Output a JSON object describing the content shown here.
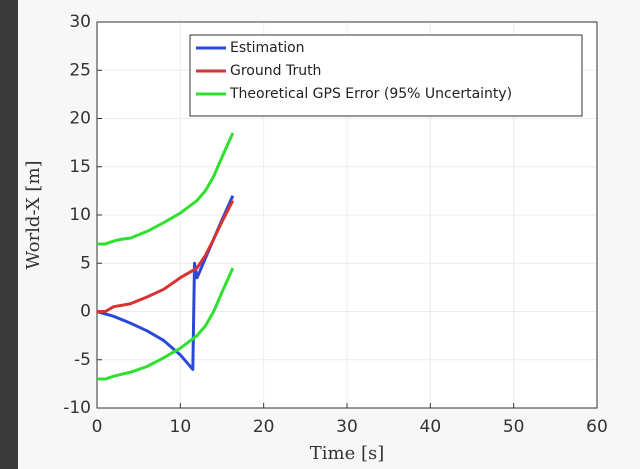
{
  "chart_data": {
    "type": "line",
    "xlabel": "Time [s]",
    "ylabel": "World-X [m]",
    "xlim": [
      0,
      60
    ],
    "xticks": [
      0,
      10,
      20,
      30,
      40,
      50,
      60
    ],
    "ylim": [
      -10,
      30
    ],
    "yticks": [
      -10,
      -5,
      0,
      5,
      10,
      15,
      20,
      25,
      30
    ],
    "grid": true,
    "legend": "top",
    "series": [
      {
        "name": "Estimation",
        "color": "#2a49d8",
        "x": [
          0,
          2,
          4,
          6,
          8,
          10,
          11.5,
          11.7,
          12,
          13,
          14,
          15,
          16.3
        ],
        "values": [
          0,
          -0.5,
          -1.2,
          -2,
          -3,
          -4.5,
          -6,
          5,
          3.5,
          5.5,
          7.5,
          9.5,
          12
        ]
      },
      {
        "name": "Ground Truth",
        "color": "#d93232",
        "x": [
          0,
          1,
          2,
          4,
          6,
          8,
          10,
          12,
          13,
          14,
          15,
          16.3
        ],
        "values": [
          0,
          0,
          0.5,
          0.8,
          1.5,
          2.3,
          3.5,
          4.5,
          5.8,
          7.5,
          9.3,
          11.5
        ]
      },
      {
        "name": "Theoretical GPS Error (95% Uncertainty)",
        "color": "#2fe02f",
        "x": [
          0,
          1,
          2,
          3,
          4,
          6,
          8,
          10,
          12,
          13,
          14,
          15,
          16.3
        ],
        "values": [
          7,
          7,
          7.3,
          7.5,
          7.6,
          8.3,
          9.2,
          10.2,
          11.5,
          12.5,
          14,
          16,
          18.5
        ]
      },
      {
        "name": null,
        "color": "#2fe02f",
        "x": [
          0,
          1,
          2,
          3,
          4,
          6,
          8,
          10,
          12,
          13,
          14,
          15,
          16.3
        ],
        "values": [
          -7,
          -7,
          -6.7,
          -6.5,
          -6.3,
          -5.7,
          -4.8,
          -3.8,
          -2.5,
          -1.5,
          0,
          2,
          4.5
        ]
      }
    ]
  }
}
